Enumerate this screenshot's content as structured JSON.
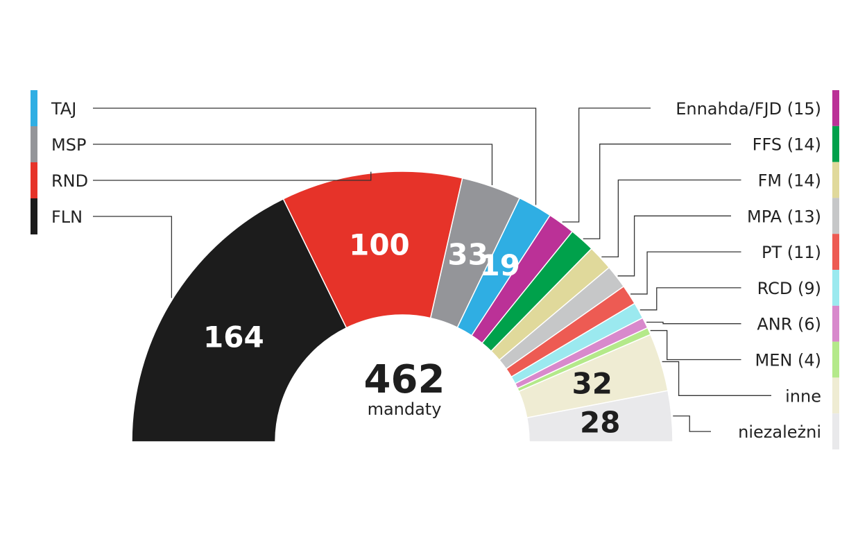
{
  "chart_data": {
    "type": "parliament-semicircle",
    "total": {
      "value": "462",
      "label": "mandaty"
    },
    "series": [
      {
        "key": "fln",
        "name": "FLN",
        "value": 164,
        "label": "164",
        "color": "#1c1c1c",
        "value_color": "#ffffff"
      },
      {
        "key": "rnd",
        "name": "RND",
        "value": 100,
        "label": "100",
        "color": "#e63329",
        "value_color": "#ffffff"
      },
      {
        "key": "msp",
        "name": "MSP",
        "value": 33,
        "label": "33",
        "color": "#949599",
        "value_color": "#ffffff"
      },
      {
        "key": "taj",
        "name": "TAJ",
        "value": 19,
        "label": "19",
        "color": "#2faee3",
        "value_color": "#ffffff"
      },
      {
        "key": "ennahda",
        "name": "Ennahda/FJD (15)",
        "value": 15,
        "color": "#bb3197"
      },
      {
        "key": "ffs",
        "name": "FFS (14)",
        "value": 14,
        "color": "#00a14b"
      },
      {
        "key": "fm",
        "name": "FM (14)",
        "value": 14,
        "color": "#e0d99b"
      },
      {
        "key": "mpa",
        "name": "MPA (13)",
        "value": 13,
        "color": "#c6c7c8"
      },
      {
        "key": "pt",
        "name": "PT (11)",
        "value": 11,
        "color": "#ed5b53"
      },
      {
        "key": "rcd",
        "name": "RCD (9)",
        "value": 9,
        "color": "#9be9ef"
      },
      {
        "key": "anr",
        "name": "ANR (6)",
        "value": 6,
        "color": "#d889cc"
      },
      {
        "key": "men",
        "name": "MEN (4)",
        "value": 4,
        "color": "#b4e98a"
      },
      {
        "key": "inne",
        "name": "inne",
        "value": 32,
        "label": "32",
        "color": "#efecd3",
        "value_color": "#1e1e1e"
      },
      {
        "key": "niezalezni",
        "name": "niezależni",
        "value": 28,
        "label": "28",
        "color": "#e9e9eb",
        "value_color": "#1e1e1e"
      }
    ],
    "legend_left": [
      "taj",
      "msp",
      "rnd",
      "fln"
    ],
    "legend_right": [
      "ennahda",
      "ffs",
      "fm",
      "mpa",
      "pt",
      "rcd",
      "anr",
      "men",
      "inne",
      "niezalezni"
    ]
  }
}
